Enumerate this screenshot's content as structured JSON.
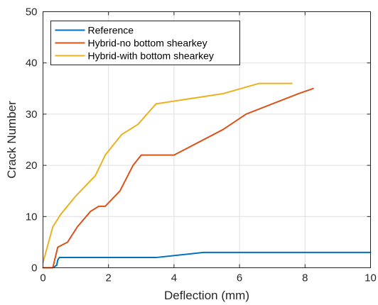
{
  "chart_data": {
    "type": "line",
    "title": "",
    "xlabel": "Deflection (mm)",
    "ylabel": "Crack Number",
    "xlim": [
      0,
      10
    ],
    "ylim": [
      0,
      50
    ],
    "xticks": [
      0,
      2,
      4,
      6,
      8,
      10
    ],
    "yticks": [
      0,
      10,
      20,
      30,
      40,
      50
    ],
    "grid": true,
    "legend_position": "top-left",
    "series": [
      {
        "name": "Reference",
        "color": "#0072BD",
        "x": [
          0,
          0.3,
          0.42,
          0.45,
          0.5,
          3.45,
          4.9,
          10
        ],
        "y": [
          0,
          0,
          0.5,
          1.5,
          2,
          2,
          3,
          3
        ]
      },
      {
        "name": "Hybrid-no bottom shearkey",
        "color": "#D95319",
        "x": [
          0,
          0.3,
          0.45,
          0.75,
          1.05,
          1.45,
          1.7,
          1.9,
          2.35,
          2.75,
          3.0,
          3.5,
          4.0,
          5.5,
          6.2,
          7.8,
          8.25
        ],
        "y": [
          0,
          0,
          4,
          5,
          8,
          11,
          12,
          12,
          15,
          20,
          22,
          22,
          22,
          27,
          30,
          34,
          35
        ]
      },
      {
        "name": "Hybrid-with bottom shearkey",
        "color": "#EDB120",
        "x": [
          0,
          0.3,
          0.55,
          1.0,
          1.6,
          1.9,
          2.4,
          2.9,
          3.45,
          5.5,
          6.6,
          7.6
        ],
        "y": [
          1,
          8,
          10.5,
          14,
          18,
          22,
          26,
          28,
          32,
          34,
          36,
          36
        ]
      }
    ]
  }
}
